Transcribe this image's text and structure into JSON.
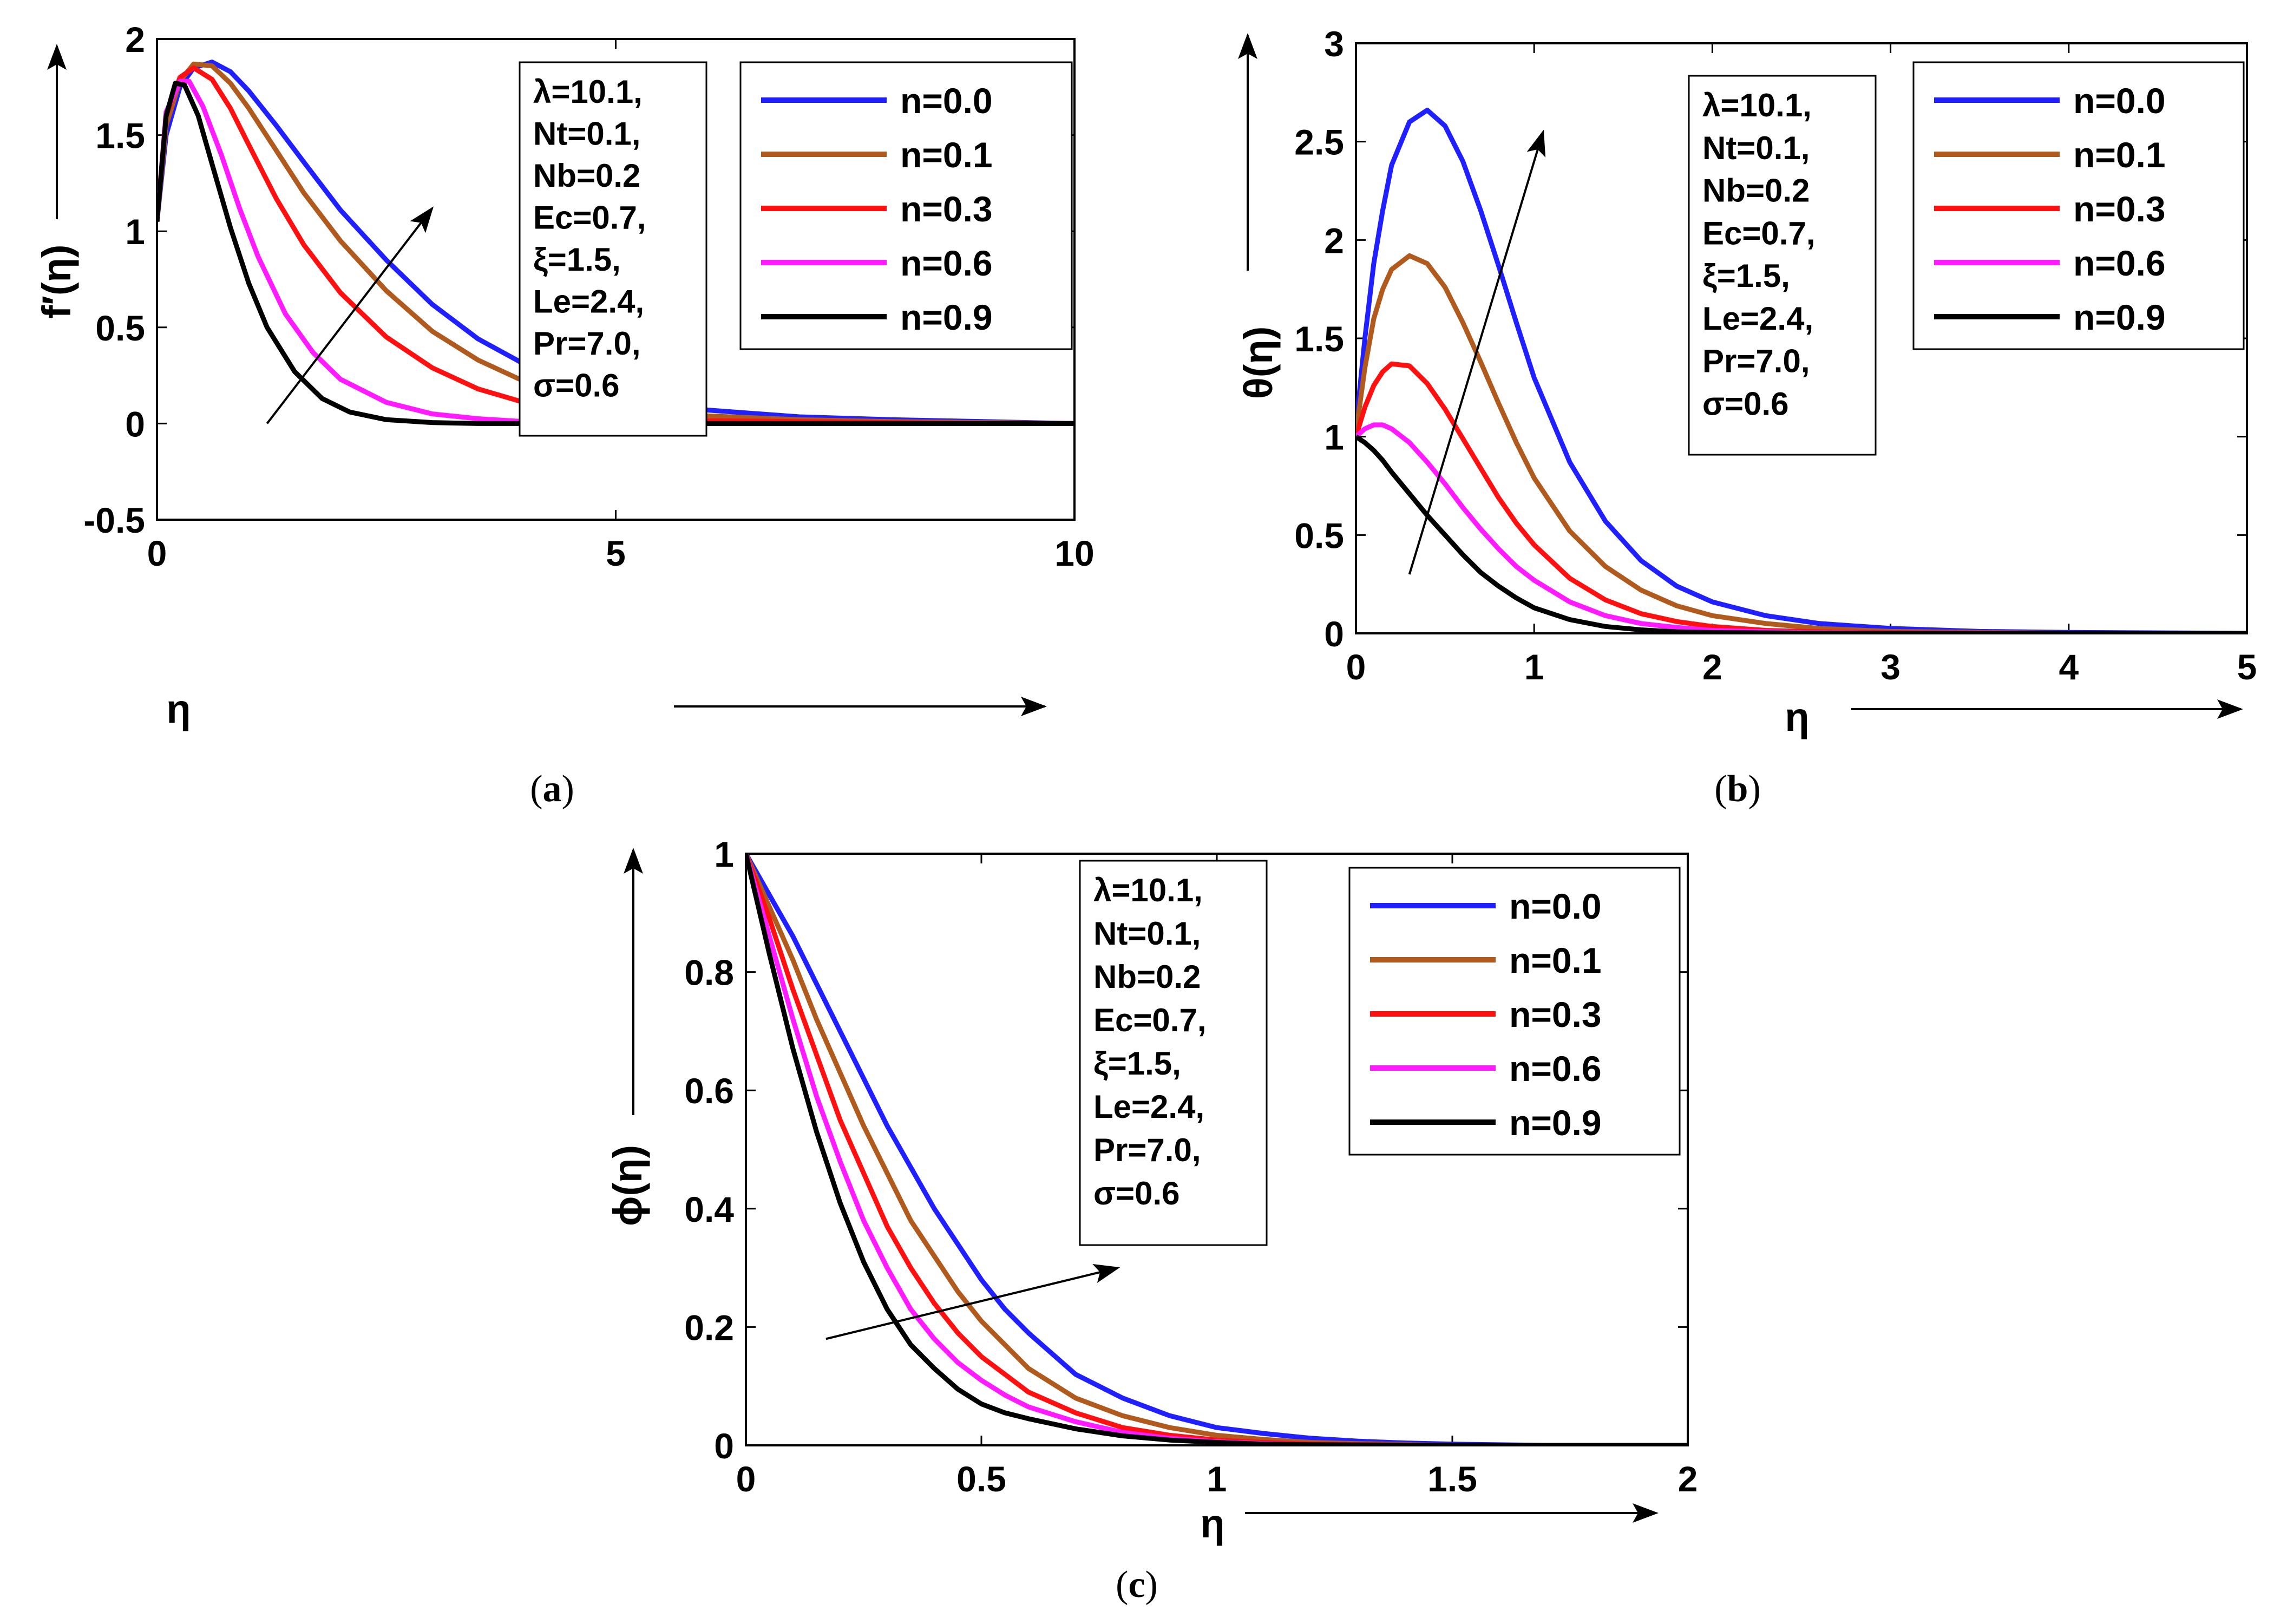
{
  "chart_data": [
    {
      "id": "a",
      "type": "line",
      "caption_letter": "a",
      "title": "",
      "xlabel": "η",
      "ylabel": "f′(η)",
      "xlim": [
        0,
        10
      ],
      "ylim": [
        -0.5,
        2
      ],
      "xticks": [
        0,
        5,
        10
      ],
      "xtick_labels": [
        "0",
        "5",
        "10"
      ],
      "yticks": [
        -0.5,
        0,
        0.5,
        1,
        1.5,
        2
      ],
      "ytick_labels": [
        "-0.5",
        "0",
        "0.5",
        "1",
        "1.5",
        "2"
      ],
      "params": [
        "λ=10.1,",
        "Nt=0.1,",
        "Nb=0.2",
        "Ec=0.7,",
        "ξ=1.5,",
        "Le=2.4,",
        "Pr=7.0,",
        "σ=0.6"
      ],
      "arrow": {
        "from": [
          1.2,
          0.0
        ],
        "to": [
          3.0,
          1.12
        ]
      },
      "series": [
        {
          "name": "n=0.0",
          "color": "#1f1fff",
          "x": [
            0,
            0.1,
            0.25,
            0.4,
            0.6,
            0.8,
            1.0,
            1.3,
            1.6,
            2.0,
            2.5,
            3.0,
            3.5,
            4.0,
            4.5,
            5.0,
            6.0,
            7.0,
            8.0,
            9.0,
            10.0
          ],
          "y": [
            1.05,
            1.5,
            1.75,
            1.85,
            1.88,
            1.83,
            1.73,
            1.55,
            1.36,
            1.11,
            0.85,
            0.62,
            0.44,
            0.31,
            0.21,
            0.14,
            0.07,
            0.035,
            0.02,
            0.01,
            0.0
          ]
        },
        {
          "name": "n=0.1",
          "color": "#b05a1e",
          "x": [
            0,
            0.1,
            0.25,
            0.4,
            0.6,
            0.8,
            1.0,
            1.3,
            1.6,
            2.0,
            2.5,
            3.0,
            3.5,
            4.0,
            4.5,
            5.0,
            6.0,
            7.0,
            8.0,
            9.0,
            10.0
          ],
          "y": [
            1.05,
            1.55,
            1.78,
            1.87,
            1.86,
            1.77,
            1.64,
            1.42,
            1.2,
            0.95,
            0.69,
            0.48,
            0.33,
            0.22,
            0.14,
            0.09,
            0.04,
            0.02,
            0.01,
            0.005,
            0.0
          ]
        },
        {
          "name": "n=0.3",
          "color": "#ff1010",
          "x": [
            0,
            0.1,
            0.25,
            0.4,
            0.6,
            0.8,
            1.0,
            1.3,
            1.6,
            2.0,
            2.5,
            3.0,
            3.5,
            4.0,
            4.5,
            5.0,
            6.0,
            7.0,
            8.0,
            9.0,
            10.0
          ],
          "y": [
            1.05,
            1.6,
            1.8,
            1.85,
            1.79,
            1.64,
            1.45,
            1.17,
            0.93,
            0.68,
            0.45,
            0.29,
            0.18,
            0.11,
            0.07,
            0.04,
            0.015,
            0.01,
            0.005,
            0.0,
            0.0
          ]
        },
        {
          "name": "n=0.6",
          "color": "#ff1aff",
          "x": [
            0,
            0.1,
            0.25,
            0.35,
            0.5,
            0.7,
            0.9,
            1.1,
            1.4,
            1.7,
            2.0,
            2.5,
            3.0,
            3.5,
            4.0,
            5.0,
            6.0,
            7.0,
            8.0,
            9.0,
            10.0
          ],
          "y": [
            1.05,
            1.62,
            1.78,
            1.78,
            1.65,
            1.4,
            1.12,
            0.87,
            0.57,
            0.37,
            0.23,
            0.11,
            0.05,
            0.025,
            0.01,
            0.0,
            0.0,
            0.0,
            0.0,
            0.0,
            0.0
          ]
        },
        {
          "name": "n=0.9",
          "color": "#000000",
          "x": [
            0,
            0.1,
            0.2,
            0.3,
            0.45,
            0.6,
            0.8,
            1.0,
            1.2,
            1.5,
            1.8,
            2.1,
            2.5,
            3.0,
            3.5,
            4.0,
            5.0,
            6.0,
            7.0,
            8.0,
            10.0
          ],
          "y": [
            1.05,
            1.6,
            1.77,
            1.76,
            1.6,
            1.35,
            1.02,
            0.73,
            0.5,
            0.27,
            0.13,
            0.06,
            0.02,
            0.005,
            0.0,
            0.0,
            0.0,
            0.0,
            0.0,
            0.0,
            0.0
          ]
        }
      ]
    },
    {
      "id": "b",
      "type": "line",
      "caption_letter": "b",
      "title": "",
      "xlabel": "η",
      "ylabel": "θ(η)",
      "xlim": [
        0,
        5
      ],
      "ylim": [
        0,
        3
      ],
      "xticks": [
        0,
        1,
        2,
        3,
        4,
        5
      ],
      "xtick_labels": [
        "0",
        "1",
        "2",
        "3",
        "4",
        "5"
      ],
      "yticks": [
        0,
        0.5,
        1,
        1.5,
        2,
        2.5,
        3
      ],
      "ytick_labels": [
        "0",
        "0.5",
        "1",
        "1.5",
        "2",
        "2.5",
        "3"
      ],
      "params": [
        "λ=10.1,",
        "Nt=0.1,",
        "Nb=0.2",
        "Ec=0.7,",
        "ξ=1.5,",
        "Le=2.4,",
        "Pr=7.0,",
        "σ=0.6"
      ],
      "arrow": {
        "from": [
          0.3,
          0.3
        ],
        "to": [
          1.05,
          2.55
        ]
      },
      "series": [
        {
          "name": "n=0.0",
          "color": "#1f1fff",
          "x": [
            0,
            0.05,
            0.1,
            0.15,
            0.2,
            0.3,
            0.4,
            0.5,
            0.6,
            0.7,
            0.8,
            0.9,
            1.0,
            1.2,
            1.4,
            1.6,
            1.8,
            2.0,
            2.3,
            2.6,
            3.0,
            3.5,
            4.0,
            5.0
          ],
          "y": [
            1.05,
            1.5,
            1.88,
            2.15,
            2.38,
            2.6,
            2.66,
            2.58,
            2.4,
            2.15,
            1.87,
            1.58,
            1.3,
            0.87,
            0.57,
            0.37,
            0.24,
            0.16,
            0.09,
            0.05,
            0.025,
            0.01,
            0.005,
            0.0
          ]
        },
        {
          "name": "n=0.1",
          "color": "#b05a1e",
          "x": [
            0,
            0.05,
            0.1,
            0.15,
            0.2,
            0.3,
            0.4,
            0.5,
            0.6,
            0.7,
            0.8,
            0.9,
            1.0,
            1.2,
            1.4,
            1.6,
            1.8,
            2.0,
            2.3,
            2.6,
            3.0,
            3.5,
            4.0,
            5.0
          ],
          "y": [
            1.02,
            1.35,
            1.6,
            1.75,
            1.85,
            1.92,
            1.88,
            1.76,
            1.58,
            1.38,
            1.17,
            0.97,
            0.79,
            0.52,
            0.34,
            0.22,
            0.14,
            0.09,
            0.05,
            0.025,
            0.01,
            0.005,
            0.0,
            0.0
          ]
        },
        {
          "name": "n=0.3",
          "color": "#ff1010",
          "x": [
            0,
            0.05,
            0.1,
            0.15,
            0.2,
            0.3,
            0.4,
            0.5,
            0.6,
            0.7,
            0.8,
            0.9,
            1.0,
            1.2,
            1.4,
            1.6,
            1.8,
            2.0,
            2.3,
            2.6,
            3.0,
            4.0,
            5.0
          ],
          "y": [
            1.0,
            1.15,
            1.26,
            1.33,
            1.37,
            1.36,
            1.27,
            1.14,
            0.99,
            0.84,
            0.69,
            0.56,
            0.45,
            0.28,
            0.17,
            0.1,
            0.06,
            0.035,
            0.015,
            0.008,
            0.003,
            0.0,
            0.0
          ]
        },
        {
          "name": "n=0.6",
          "color": "#ff1aff",
          "x": [
            0,
            0.05,
            0.1,
            0.15,
            0.2,
            0.3,
            0.4,
            0.5,
            0.6,
            0.7,
            0.8,
            0.9,
            1.0,
            1.2,
            1.4,
            1.6,
            1.8,
            2.0,
            2.5,
            3.0,
            4.0,
            5.0
          ],
          "y": [
            1.0,
            1.04,
            1.06,
            1.06,
            1.04,
            0.97,
            0.87,
            0.76,
            0.64,
            0.53,
            0.43,
            0.34,
            0.27,
            0.16,
            0.09,
            0.05,
            0.03,
            0.015,
            0.004,
            0.001,
            0.0,
            0.0
          ]
        },
        {
          "name": "n=0.9",
          "color": "#000000",
          "x": [
            0,
            0.05,
            0.1,
            0.15,
            0.2,
            0.3,
            0.4,
            0.5,
            0.6,
            0.7,
            0.8,
            0.9,
            1.0,
            1.2,
            1.4,
            1.6,
            1.8,
            2.0,
            2.5,
            3.0,
            4.0,
            5.0
          ],
          "y": [
            1.0,
            0.97,
            0.93,
            0.88,
            0.82,
            0.71,
            0.6,
            0.5,
            0.4,
            0.31,
            0.24,
            0.18,
            0.13,
            0.07,
            0.035,
            0.018,
            0.008,
            0.004,
            0.001,
            0.0,
            0.0,
            0.0
          ]
        }
      ]
    },
    {
      "id": "c",
      "type": "line",
      "caption_letter": "c",
      "title": "",
      "xlabel": "η",
      "ylabel": "ϕ(η)",
      "xlim": [
        0,
        2
      ],
      "ylim": [
        0,
        1
      ],
      "xticks": [
        0,
        0.5,
        1,
        1.5,
        2
      ],
      "xtick_labels": [
        "0",
        "0.5",
        "1",
        "1.5",
        "2"
      ],
      "yticks": [
        0,
        0.2,
        0.4,
        0.6,
        0.8,
        1
      ],
      "ytick_labels": [
        "0",
        "0.2",
        "0.4",
        "0.6",
        "0.8",
        "1"
      ],
      "params": [
        "λ=10.1,",
        "Nt=0.1,",
        "Nb=0.2",
        "Ec=0.7,",
        "ξ=1.5,",
        "Le=2.4,",
        "Pr=7.0,",
        "σ=0.6"
      ],
      "arrow": {
        "from": [
          0.17,
          0.18
        ],
        "to": [
          0.79,
          0.3
        ]
      },
      "series": [
        {
          "name": "n=0.0",
          "color": "#1f1fff",
          "x": [
            0,
            0.05,
            0.1,
            0.15,
            0.2,
            0.25,
            0.3,
            0.35,
            0.4,
            0.45,
            0.5,
            0.55,
            0.6,
            0.7,
            0.8,
            0.9,
            1.0,
            1.1,
            1.2,
            1.3,
            1.4,
            1.5,
            1.7,
            2.0
          ],
          "y": [
            1.0,
            0.93,
            0.86,
            0.78,
            0.7,
            0.62,
            0.54,
            0.47,
            0.4,
            0.34,
            0.28,
            0.23,
            0.19,
            0.12,
            0.08,
            0.05,
            0.03,
            0.02,
            0.012,
            0.007,
            0.004,
            0.002,
            0.0,
            0.0
          ]
        },
        {
          "name": "n=0.1",
          "color": "#b05a1e",
          "x": [
            0,
            0.05,
            0.1,
            0.15,
            0.2,
            0.25,
            0.3,
            0.35,
            0.4,
            0.45,
            0.5,
            0.55,
            0.6,
            0.7,
            0.8,
            0.9,
            1.0,
            1.1,
            1.2,
            1.3,
            1.5,
            2.0
          ],
          "y": [
            1.0,
            0.91,
            0.82,
            0.72,
            0.63,
            0.54,
            0.46,
            0.38,
            0.32,
            0.26,
            0.21,
            0.17,
            0.13,
            0.08,
            0.05,
            0.03,
            0.017,
            0.01,
            0.005,
            0.003,
            0.0,
            0.0
          ]
        },
        {
          "name": "n=0.3",
          "color": "#ff1010",
          "x": [
            0,
            0.05,
            0.1,
            0.15,
            0.2,
            0.25,
            0.3,
            0.35,
            0.4,
            0.45,
            0.5,
            0.55,
            0.6,
            0.7,
            0.8,
            0.9,
            1.0,
            1.1,
            1.2,
            1.5,
            2.0
          ],
          "y": [
            1.0,
            0.89,
            0.77,
            0.66,
            0.55,
            0.46,
            0.37,
            0.3,
            0.24,
            0.19,
            0.15,
            0.12,
            0.09,
            0.055,
            0.03,
            0.017,
            0.009,
            0.005,
            0.002,
            0.0,
            0.0
          ]
        },
        {
          "name": "n=0.6",
          "color": "#ff1aff",
          "x": [
            0,
            0.05,
            0.1,
            0.15,
            0.2,
            0.25,
            0.3,
            0.35,
            0.4,
            0.45,
            0.5,
            0.55,
            0.6,
            0.7,
            0.8,
            0.9,
            1.0,
            1.1,
            1.2,
            1.5,
            2.0
          ],
          "y": [
            1.0,
            0.86,
            0.72,
            0.59,
            0.48,
            0.38,
            0.3,
            0.23,
            0.18,
            0.14,
            0.11,
            0.085,
            0.065,
            0.04,
            0.022,
            0.012,
            0.006,
            0.003,
            0.001,
            0.0,
            0.0
          ]
        },
        {
          "name": "n=0.9",
          "color": "#000000",
          "x": [
            0,
            0.05,
            0.1,
            0.15,
            0.2,
            0.25,
            0.3,
            0.35,
            0.4,
            0.45,
            0.5,
            0.55,
            0.6,
            0.7,
            0.8,
            0.9,
            1.0,
            1.1,
            1.2,
            1.5,
            2.0
          ],
          "y": [
            1.0,
            0.83,
            0.67,
            0.53,
            0.41,
            0.31,
            0.23,
            0.17,
            0.13,
            0.095,
            0.07,
            0.055,
            0.045,
            0.028,
            0.016,
            0.009,
            0.005,
            0.002,
            0.001,
            0.0,
            0.0
          ]
        }
      ]
    }
  ]
}
